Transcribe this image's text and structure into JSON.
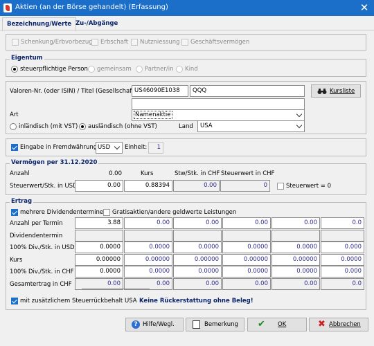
{
  "window": {
    "title": "Aktien (an der Börse gehandelt) (Erfassung)",
    "close_glyph": "✕",
    "app_icon": "app-logo-icon"
  },
  "tabs": [
    {
      "label": "Bezeichnung/Werte",
      "active": true
    },
    {
      "label": "Zu-/Abgänge",
      "active": false
    }
  ],
  "flags": {
    "items": [
      {
        "label": "Schenkung/Erbvorbezug",
        "checked": false
      },
      {
        "label": "Erbschaft",
        "checked": false
      },
      {
        "label": "Nutzniessung",
        "checked": false
      },
      {
        "label": "Geschäftsvermögen",
        "checked": false
      }
    ]
  },
  "eigentum": {
    "title": "Eigentum",
    "options": [
      {
        "label": "steuerpflichtige Person",
        "selected": true
      },
      {
        "label": "gemeinsam",
        "selected": false
      },
      {
        "label": "Partner/in",
        "selected": false
      },
      {
        "label": "Kind",
        "selected": false
      }
    ]
  },
  "security": {
    "valoren_label": "Valoren-Nr. (oder ISIN) / Titel (Gesellschaft)",
    "isin_value": "US46090E1038",
    "titel_value": "QQQ",
    "second_line_value": "",
    "kursliste_label": "Kursliste",
    "art_label": "Art",
    "art_value": "Namenaktie",
    "domestic_options": [
      {
        "label": "inländisch (mit VST)",
        "selected": false
      },
      {
        "label": "ausländisch (ohne VST)",
        "selected": true
      }
    ],
    "land_label": "Land",
    "land_value": "USA"
  },
  "currency": {
    "checkbox_label": "Eingabe in Fremdwährung",
    "checked": true,
    "currency_value": "USD",
    "einheit_label": "Einheit:",
    "einheit_value": "1"
  },
  "vermoegen": {
    "title": "Vermögen per 31.12.2020",
    "anzahl_label": "Anzahl",
    "anzahl_value": "0.00",
    "kurs_label": "Kurs",
    "stw_label": "Stw/Stk. in CHF",
    "steuerwert_chf_label": "Steuerwert in CHF",
    "steuerwert_usd_label": "Steuerwert/Stk. in USD",
    "steuerwert_usd_value": "0.00",
    "kurs_value": "0.88394",
    "stw_value": "0.00",
    "steuerwert_chf_value": "0",
    "steuerwert_null_label": "Steuerwert = 0",
    "steuerwert_null_checked": false
  },
  "ertrag": {
    "title": "Ertrag",
    "mehrere_label": "mehrere Dividendentermine",
    "mehrere_checked": true,
    "gratis_label": "Gratisaktien/andere geldwerte Leistungen",
    "gratis_checked": false,
    "row_labels": [
      "Anzahl per Termin",
      "Dividendentermin",
      "100% Div./Stk. in USD",
      "Kurs",
      "100% Div./Stk. in CHF",
      "Gesamtertrag in CHF"
    ],
    "rows": [
      [
        "3.88",
        "0.00",
        "0.00",
        "0.00",
        "0.00",
        "0.0"
      ],
      [
        "",
        "",
        "",
        "",
        "",
        ""
      ],
      [
        "0.0000",
        "0.0000",
        "0.0000",
        "0.0000",
        "0.0000",
        "0.000"
      ],
      [
        "0.00000",
        "0.00000",
        "0.00000",
        "0.00000",
        "0.00000",
        "0.0000"
      ],
      [
        "0.0000",
        "0.0000",
        "0.0000",
        "0.0000",
        "0.0000",
        "0.000"
      ],
      [
        "0.00",
        "0.00",
        "0.00",
        "0.00",
        "0.00",
        "0.0"
      ]
    ],
    "rueckbehalt_label": "mit zusätzlichem Steuerrückbehalt USA",
    "rueckbehalt_checked": true,
    "keine_label": "Keine Rückerstattung ohne Beleg!"
  },
  "buttons": {
    "hilfe": "Hilfe/Wegl.",
    "bemerkung": "Bemerkung",
    "ok": "OK",
    "abbrechen": "Abbrechen"
  },
  "colors": {
    "titlebar": "#1c6fc9",
    "accent_blue": "#0a246a",
    "value_blue": "#2d2d8c",
    "ok_green": "#1a8a1a",
    "cancel_red": "#cc1f1f"
  }
}
